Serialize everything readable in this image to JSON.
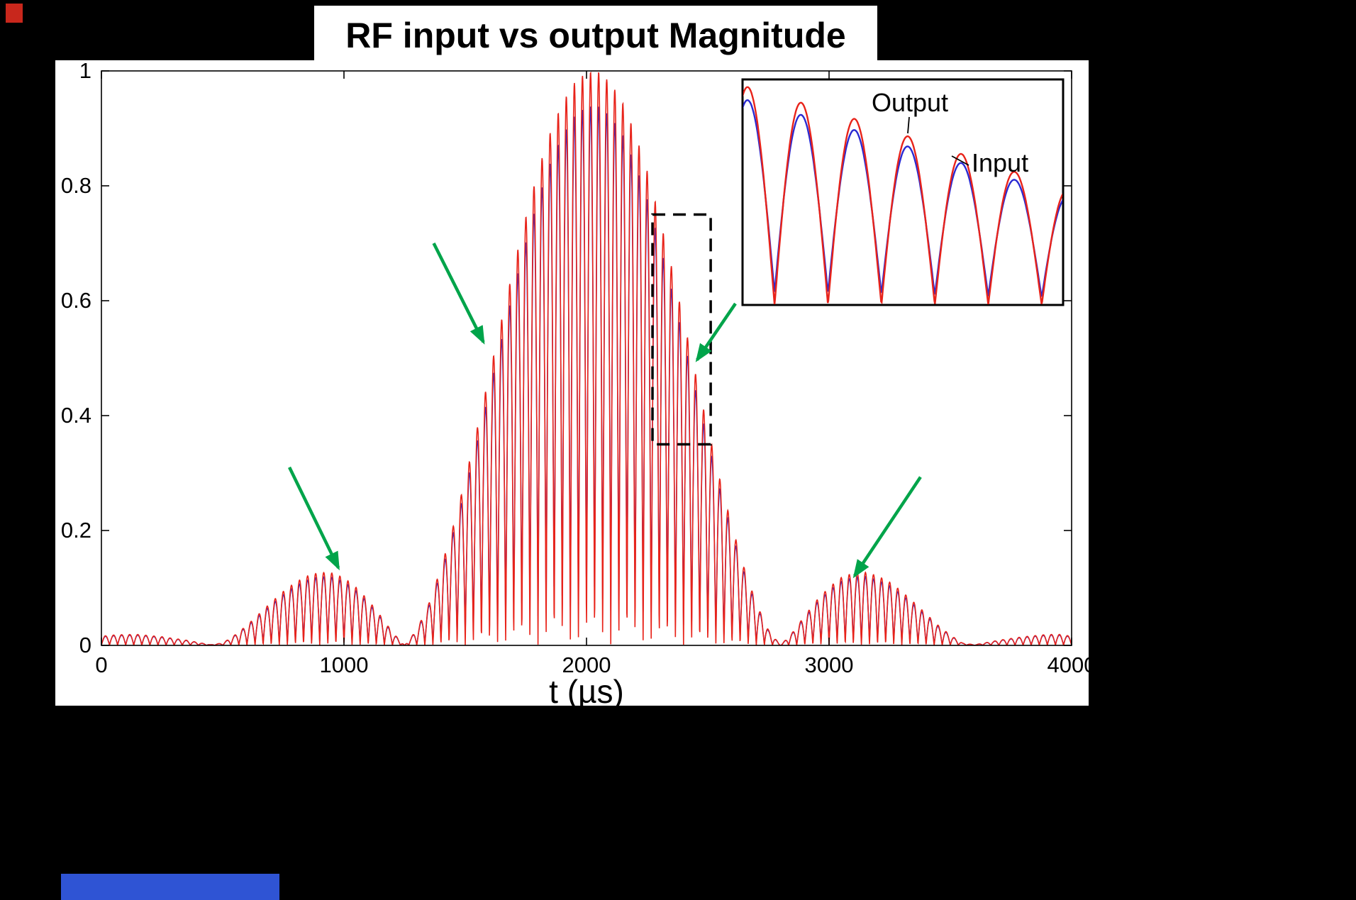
{
  "window": {
    "background": "#000000"
  },
  "artifacts": {
    "corner": {
      "color": "#c8271c"
    },
    "taskbar": {
      "color": "#2f54d4"
    }
  },
  "chart_data": {
    "type": "line",
    "title": "RF input vs output Magnitude",
    "xlabel": "t (µs)",
    "ylabel": "",
    "xlim": [
      0,
      4000
    ],
    "ylim": [
      0,
      1
    ],
    "x_ticks": [
      "0",
      "1000",
      "2000",
      "3000",
      "4000"
    ],
    "x_tick_values": [
      0,
      1000,
      2000,
      3000,
      4000
    ],
    "y_ticks": [
      "0",
      "0.2",
      "0.4",
      "0.6",
      "0.8",
      "1"
    ],
    "y_tick_values": [
      0,
      0.2,
      0.4,
      0.6,
      0.8,
      1
    ],
    "grid": false,
    "axes_color": "#000000",
    "legend_position": "inset-top-right",
    "series": [
      {
        "name": "Input",
        "color": "#2a2ad2",
        "amp": 0.88,
        "offset": 0.06,
        "peak_fraction_of_output": 0.94
      },
      {
        "name": "Output",
        "color": "#e8231a",
        "amp": 1.0,
        "offset": 0.0,
        "peak_fraction_of_output": 1.0
      }
    ],
    "signal_model": {
      "description": "Magnitude of a sinc-enveloped RF burst. curve(t) = envelope(t) * (offset + amp*|sin(pi*t/half_period)|). Envelope sampled every 50 us below; main lobe peak 1.0 near t=2016 us, nulls near t=1250 and t=2800 us, first sidelobes peak ~0.127 near t=900 and t=3150 us.",
      "carrier_half_period_us": 33.333,
      "envelope_step_us": 50,
      "envelope_mag": [
        0.016,
        0.018,
        0.019,
        0.019,
        0.017,
        0.015,
        0.012,
        0.009,
        0.005,
        0.001,
        0.004,
        0.018,
        0.035,
        0.055,
        0.075,
        0.094,
        0.11,
        0.121,
        0.127,
        0.126,
        0.118,
        0.101,
        0.079,
        0.052,
        0.023,
        0.0,
        0.027,
        0.073,
        0.135,
        0.207,
        0.289,
        0.379,
        0.472,
        0.567,
        0.66,
        0.746,
        0.826,
        0.892,
        0.944,
        0.979,
        0.998,
        0.998,
        0.979,
        0.944,
        0.892,
        0.826,
        0.746,
        0.66,
        0.567,
        0.472,
        0.379,
        0.289,
        0.207,
        0.135,
        0.073,
        0.027,
        0.0,
        0.023,
        0.052,
        0.079,
        0.101,
        0.118,
        0.126,
        0.127,
        0.121,
        0.11,
        0.094,
        0.075,
        0.055,
        0.035,
        0.018,
        0.004,
        0.001,
        0.005,
        0.009,
        0.012,
        0.015,
        0.017,
        0.019,
        0.019,
        0.016
      ]
    },
    "zoom_region": {
      "t": [
        2272,
        2512
      ],
      "mag": [
        0.35,
        0.75
      ]
    },
    "inset": {
      "t": [
        2280,
        2480
      ],
      "mag": [
        0,
        0.8
      ],
      "output_label": "Output",
      "input_label": "Input"
    },
    "annotations": {
      "arrow_color": "#00a44a",
      "arrows": [
        {
          "from_t": 1370,
          "from_mag": 0.7,
          "to_t": 1575,
          "to_mag": 0.528
        },
        {
          "from_t": 775,
          "from_mag": 0.31,
          "to_t": 977,
          "to_mag": 0.135
        },
        {
          "from_t": 2614,
          "from_mag": 0.595,
          "to_t": 2456,
          "to_mag": 0.497
        },
        {
          "from_t": 3377,
          "from_mag": 0.293,
          "to_t": 3105,
          "to_mag": 0.121
        }
      ]
    }
  }
}
